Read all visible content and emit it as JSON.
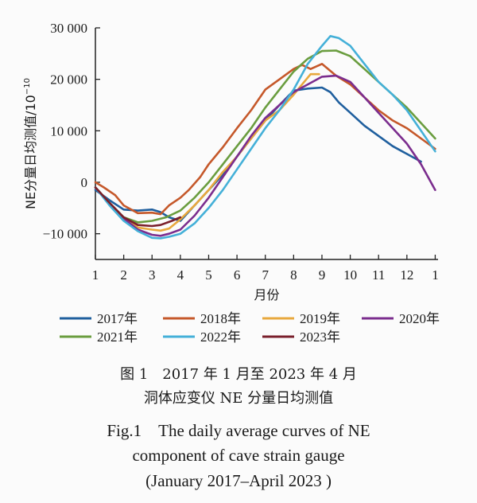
{
  "chart_data": {
    "type": "line",
    "title": "",
    "xlabel": "月份",
    "ylabel": "NE分量日均测值/10",
    "ylabel_exp": "−10",
    "xlim": [
      1,
      13.1
    ],
    "ylim": [
      -15000,
      30000
    ],
    "x_ticks": [
      1,
      2,
      3,
      4,
      5,
      6,
      7,
      8,
      9,
      10,
      11,
      12,
      13
    ],
    "x_tick_labels": [
      "1",
      "2",
      "3",
      "4",
      "5",
      "6",
      "7",
      "8",
      "9",
      "10",
      "11",
      "12",
      "1"
    ],
    "y_ticks": [
      -10000,
      0,
      10000,
      20000,
      30000
    ],
    "y_tick_labels": [
      "−10 000",
      "0",
      "10 000",
      "20 000",
      "30 000"
    ],
    "grid": false,
    "legend_position": "bottom",
    "series": [
      {
        "name": "2017年",
        "color": "#1f5f9e",
        "points": [
          [
            1,
            -1500
          ],
          [
            1.5,
            -3500
          ],
          [
            2,
            -5300
          ],
          [
            2.5,
            -5500
          ],
          [
            3,
            -5300
          ],
          [
            3.3,
            -5800
          ],
          [
            3.6,
            -6800
          ],
          [
            4,
            -7500
          ],
          [
            4.5,
            -4500
          ],
          [
            5,
            -1500
          ],
          [
            5.5,
            1500
          ],
          [
            6,
            5000
          ],
          [
            6.5,
            8500
          ],
          [
            7,
            12000
          ],
          [
            7.5,
            15000
          ],
          [
            8,
            17800
          ],
          [
            8.5,
            18200
          ],
          [
            9,
            18400
          ],
          [
            9.3,
            17500
          ],
          [
            9.6,
            15500
          ],
          [
            10,
            13500
          ],
          [
            10.5,
            11000
          ],
          [
            11,
            9000
          ],
          [
            11.5,
            7000
          ],
          [
            12,
            5500
          ],
          [
            12.5,
            4000
          ]
        ]
      },
      {
        "name": "2018年",
        "color": "#c5582a",
        "points": [
          [
            1,
            0
          ],
          [
            1.3,
            -1000
          ],
          [
            1.7,
            -2500
          ],
          [
            2,
            -4500
          ],
          [
            2.5,
            -6000
          ],
          [
            3,
            -5900
          ],
          [
            3.3,
            -6200
          ],
          [
            3.6,
            -4500
          ],
          [
            4,
            -3000
          ],
          [
            4.3,
            -1500
          ],
          [
            4.7,
            1000
          ],
          [
            5,
            3500
          ],
          [
            5.5,
            6800
          ],
          [
            6,
            10500
          ],
          [
            6.5,
            14000
          ],
          [
            7,
            18000
          ],
          [
            7.5,
            20000
          ],
          [
            8,
            22000
          ],
          [
            8.3,
            22800
          ],
          [
            8.6,
            22000
          ],
          [
            9,
            23000
          ],
          [
            9.5,
            20700
          ],
          [
            10,
            19000
          ],
          [
            10.5,
            16500
          ],
          [
            11,
            14000
          ],
          [
            11.5,
            12000
          ],
          [
            12,
            10500
          ],
          [
            12.5,
            8500
          ],
          [
            13,
            6500
          ]
        ]
      },
      {
        "name": "2019年",
        "color": "#e8a83d",
        "points": [
          [
            1,
            -1000
          ],
          [
            1.5,
            -4000
          ],
          [
            2,
            -7000
          ],
          [
            2.5,
            -8800
          ],
          [
            3,
            -9200
          ],
          [
            3.3,
            -9400
          ],
          [
            3.6,
            -9000
          ],
          [
            4,
            -7200
          ],
          [
            4.5,
            -4500
          ],
          [
            5,
            -1500
          ],
          [
            5.5,
            2000
          ],
          [
            6,
            5000
          ],
          [
            6.5,
            8500
          ],
          [
            7,
            12000
          ],
          [
            7.5,
            14000
          ],
          [
            8,
            17000
          ],
          [
            8.3,
            19000
          ],
          [
            8.6,
            21000
          ],
          [
            8.9,
            21000
          ]
        ]
      },
      {
        "name": "2020年",
        "color": "#7b2d8e",
        "points": [
          [
            1,
            -1000
          ],
          [
            1.5,
            -4000
          ],
          [
            2,
            -7000
          ],
          [
            2.5,
            -9200
          ],
          [
            3,
            -10200
          ],
          [
            3.3,
            -10400
          ],
          [
            3.6,
            -10000
          ],
          [
            4,
            -9200
          ],
          [
            4.5,
            -6500
          ],
          [
            5,
            -3000
          ],
          [
            5.5,
            1000
          ],
          [
            6,
            5000
          ],
          [
            6.5,
            9000
          ],
          [
            7,
            12500
          ],
          [
            7.5,
            15000
          ],
          [
            8,
            17500
          ],
          [
            8.5,
            19000
          ],
          [
            9,
            20500
          ],
          [
            9.5,
            20700
          ],
          [
            10,
            19500
          ],
          [
            10.5,
            16500
          ],
          [
            11,
            13500
          ],
          [
            11.5,
            10500
          ],
          [
            12,
            7500
          ],
          [
            12.5,
            3500
          ],
          [
            13,
            -1500
          ]
        ]
      },
      {
        "name": "2021年",
        "color": "#6a9d3f",
        "points": [
          [
            1,
            -1000
          ],
          [
            1.5,
            -4000
          ],
          [
            2,
            -6800
          ],
          [
            2.5,
            -7800
          ],
          [
            3,
            -7500
          ],
          [
            3.5,
            -6800
          ],
          [
            4,
            -5500
          ],
          [
            4.5,
            -3000
          ],
          [
            5,
            0
          ],
          [
            5.5,
            3500
          ],
          [
            6,
            7000
          ],
          [
            6.5,
            10500
          ],
          [
            7,
            14500
          ],
          [
            7.5,
            18000
          ],
          [
            8,
            21500
          ],
          [
            8.5,
            24000
          ],
          [
            9,
            25500
          ],
          [
            9.5,
            25600
          ],
          [
            10,
            24500
          ],
          [
            10.5,
            22000
          ],
          [
            11,
            19500
          ],
          [
            11.5,
            17000
          ],
          [
            12,
            14500
          ],
          [
            12.5,
            11500
          ],
          [
            13,
            8500
          ]
        ]
      },
      {
        "name": "2022年",
        "color": "#44b0d8",
        "points": [
          [
            1,
            -1000
          ],
          [
            1.5,
            -4500
          ],
          [
            2,
            -7500
          ],
          [
            2.5,
            -9500
          ],
          [
            3,
            -10800
          ],
          [
            3.3,
            -10900
          ],
          [
            3.6,
            -10600
          ],
          [
            4,
            -10000
          ],
          [
            4.5,
            -8000
          ],
          [
            5,
            -5000
          ],
          [
            5.5,
            -1500
          ],
          [
            6,
            2500
          ],
          [
            6.5,
            6500
          ],
          [
            7,
            10500
          ],
          [
            7.5,
            14000
          ],
          [
            8,
            18000
          ],
          [
            8.5,
            23000
          ],
          [
            9,
            26500
          ],
          [
            9.3,
            28400
          ],
          [
            9.6,
            28000
          ],
          [
            10,
            26500
          ],
          [
            10.5,
            23000
          ],
          [
            11,
            19500
          ],
          [
            11.5,
            17000
          ],
          [
            12,
            14000
          ],
          [
            12.5,
            10000
          ],
          [
            13,
            6000
          ]
        ]
      },
      {
        "name": "2023年",
        "color": "#7a1f2b",
        "points": [
          [
            1,
            -1000
          ],
          [
            1.5,
            -4000
          ],
          [
            2,
            -6800
          ],
          [
            2.5,
            -8300
          ],
          [
            3,
            -8500
          ],
          [
            3.3,
            -8300
          ],
          [
            3.7,
            -7500
          ],
          [
            4,
            -6800
          ]
        ]
      }
    ]
  },
  "caption": {
    "zh_line1": "图 1　2017 年 1 月至 2023 年 4 月",
    "zh_line2": "洞体应变仪 NE 分量日均测值",
    "en_line1": "Fig.1　The daily average curves of NE",
    "en_line2": "component of cave strain gauge",
    "en_line3": "(January 2017–April 2023 )"
  }
}
